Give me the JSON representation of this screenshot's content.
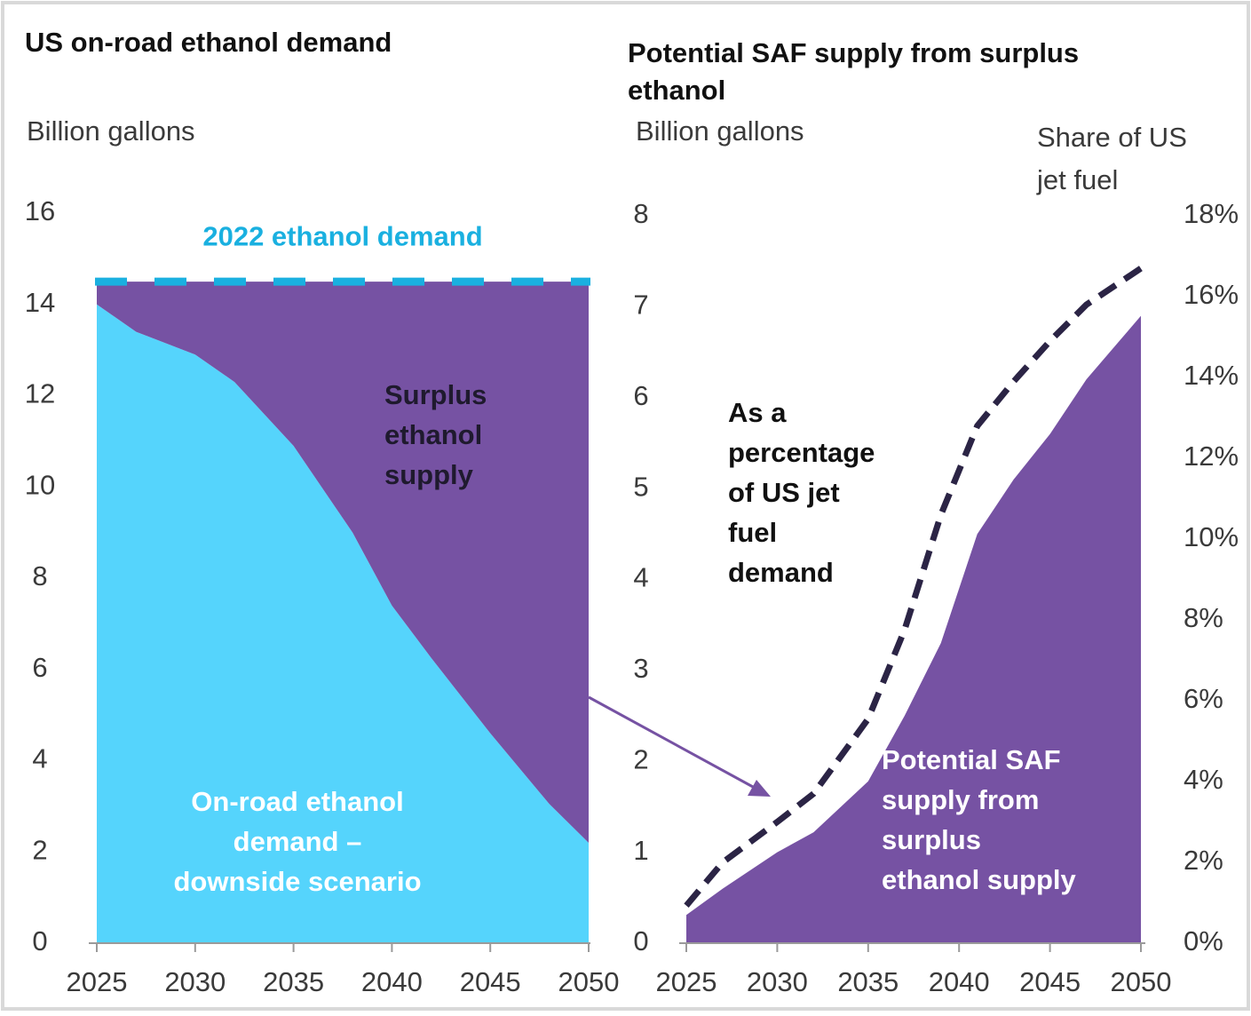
{
  "chart_data": [
    {
      "type": "area",
      "stacked": true,
      "title": [
        "US on-road ethanol demand"
      ],
      "y_label": "Billion gallons",
      "x": [
        2025,
        2027,
        2030,
        2032,
        2035,
        2038,
        2040,
        2042,
        2045,
        2048,
        2050
      ],
      "xlim": [
        2025,
        2050
      ],
      "xticks": [
        2025,
        2030,
        2035,
        2040,
        2045,
        2050
      ],
      "ylim": [
        0,
        16
      ],
      "yticks": [
        0,
        2,
        4,
        6,
        8,
        10,
        12,
        14,
        16
      ],
      "series": [
        {
          "name": [
            "On-road ethanol",
            "demand –",
            "downside scenario"
          ],
          "type": "area",
          "color": "#55d4fc",
          "values": [
            14.0,
            13.4,
            12.9,
            12.3,
            10.9,
            9.0,
            7.4,
            6.25,
            4.6,
            3.05,
            2.2
          ]
        },
        {
          "name": [
            "Surplus",
            "ethanol",
            "supply"
          ],
          "type": "area",
          "color": "#7652a3",
          "values": [
            0.5,
            1.1,
            1.6,
            2.2,
            3.6,
            5.5,
            7.1,
            8.25,
            9.9,
            11.45,
            12.3
          ]
        }
      ],
      "reference_line": {
        "value": 14.5,
        "label": "2022 ethanol demand",
        "color": "#1ab0e0"
      }
    },
    {
      "type": "combo",
      "title": [
        "Potential SAF supply from surplus",
        "ethanol"
      ],
      "y_label": "Billion gallons",
      "y2_label": [
        "Share of US",
        "jet fuel"
      ],
      "x": [
        2025,
        2027,
        2030,
        2032,
        2035,
        2037,
        2039,
        2041,
        2043,
        2045,
        2047,
        2050
      ],
      "xlim": [
        2025,
        2050
      ],
      "xticks": [
        2025,
        2030,
        2035,
        2040,
        2045,
        2050
      ],
      "ylim": [
        0,
        8
      ],
      "yticks": [
        0,
        1,
        2,
        3,
        4,
        5,
        6,
        7,
        8
      ],
      "y2lim": [
        0,
        18
      ],
      "y2ticks": [
        {
          "value": 0,
          "label": "0%"
        },
        {
          "value": 2,
          "label": "2%"
        },
        {
          "value": 4,
          "label": "4%"
        },
        {
          "value": 6,
          "label": "6%"
        },
        {
          "value": 8,
          "label": "8%"
        },
        {
          "value": 10,
          "label": "10%"
        },
        {
          "value": 12,
          "label": "12%"
        },
        {
          "value": 14,
          "label": "14%"
        },
        {
          "value": 16,
          "label": "16%"
        },
        {
          "value": 18,
          "label": "18%"
        }
      ],
      "series": [
        {
          "name": [
            "Potential SAF",
            "supply from",
            "surplus",
            "ethanol supply"
          ],
          "type": "area",
          "color": "#7652a3",
          "values": [
            0.31,
            0.6,
            1.0,
            1.22,
            1.78,
            2.5,
            3.3,
            4.5,
            5.1,
            5.6,
            6.2,
            6.9
          ]
        },
        {
          "name": [
            "As a",
            "percentage",
            "of US jet",
            "fuel",
            "demand"
          ],
          "type": "line",
          "axis": "y2",
          "dashed": true,
          "color": "#2b2445",
          "values": [
            0.93,
            2.0,
            3.0,
            3.7,
            5.55,
            7.75,
            10.6,
            12.8,
            13.9,
            14.9,
            15.8,
            16.7
          ]
        }
      ]
    }
  ]
}
